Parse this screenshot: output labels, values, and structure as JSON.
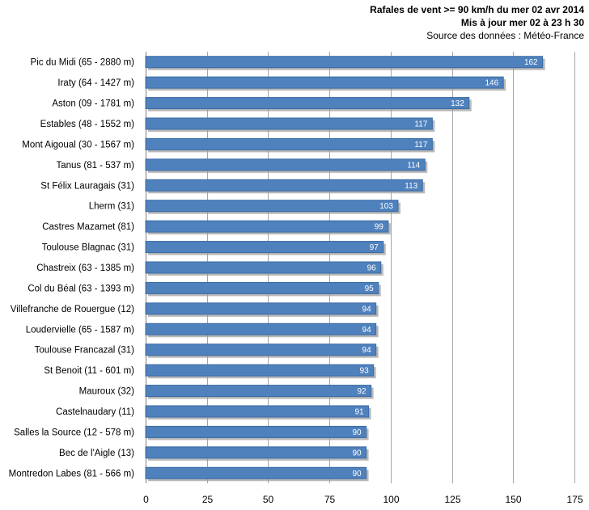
{
  "header": {
    "title_line1": "Rafales de vent >= 90 km/h du mer 02 avr 2014",
    "title_line2": "Mis à jour mer 02 à 23 h 30",
    "source": "Source des données : Météo-France"
  },
  "chart_data": {
    "type": "bar",
    "orientation": "horizontal",
    "categories": [
      "Pic du Midi (65 - 2880 m)",
      "Iraty (64 - 1427 m)",
      "Aston (09 - 1781 m)",
      "Estables (48 - 1552 m)",
      "Mont Aigoual (30 - 1567 m)",
      "Tanus (81 - 537 m)",
      "St Félix Lauragais (31)",
      "Lherm (31)",
      "Castres Mazamet (81)",
      "Toulouse Blagnac (31)",
      "Chastreix (63 - 1385 m)",
      "Col du Béal (63 - 1393 m)",
      "Villefranche de Rouergue (12)",
      "Loudervielle (65 - 1587 m)",
      "Toulouse Francazal (31)",
      "St Benoit (11 - 601 m)",
      "Mauroux (32)",
      "Castelnaudary (11)",
      "Salles la Source (12 - 578 m)",
      "Bec de l'Aigle (13)",
      "Montredon Labes (81 - 566 m)"
    ],
    "values": [
      162,
      146,
      132,
      117,
      117,
      114,
      113,
      103,
      99,
      97,
      96,
      95,
      94,
      94,
      94,
      93,
      92,
      91,
      90,
      90,
      90
    ],
    "xlim": [
      0,
      175
    ],
    "xticks": [
      0,
      25,
      50,
      75,
      100,
      125,
      150,
      175
    ],
    "grid": true,
    "bar_color": "#4f81bd",
    "bar_edge_color": "#3a6aa5",
    "shadow_color": "#9a9a9a",
    "grid_color": "#a6a6a6"
  }
}
